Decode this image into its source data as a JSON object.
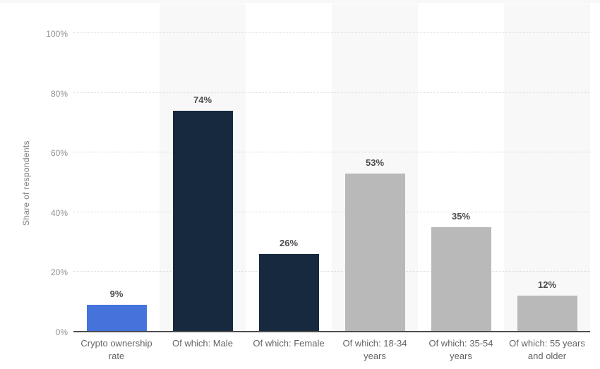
{
  "page": {
    "background_color": "#ffffff",
    "top_strip_color": "#f7f8f9"
  },
  "chart_data": {
    "type": "bar",
    "title": "",
    "xlabel": "",
    "ylabel": "Share of respondents",
    "categories": [
      "Crypto ownership rate",
      "Of which: Male",
      "Of which: Female",
      "Of which: 18-34 years",
      "Of which: 35-54 years",
      "Of which: 55 years and older"
    ],
    "values": [
      9,
      74,
      26,
      53,
      35,
      12
    ],
    "value_labels": [
      "9%",
      "74%",
      "26%",
      "53%",
      "35%",
      "12%"
    ],
    "bar_colors": [
      "#4373db",
      "#17293e",
      "#17293e",
      "#b9b9b9",
      "#b9b9b9",
      "#b9b9b9"
    ],
    "ylim": [
      0,
      100
    ],
    "yticks": [
      0,
      20,
      40,
      60,
      80,
      100
    ],
    "ytick_labels": [
      "0%",
      "20%",
      "40%",
      "60%",
      "80%",
      "100%"
    ],
    "grid": "horizontal dotted gridlines at 20% steps",
    "legend": "none",
    "plot_band_color": "#f8f8f8",
    "plot_bands": "alternating vertical background bands behind categories 2, 4 and 6",
    "colors": {
      "axis_line": "#4d4d4d",
      "gridline": "#d7d7d7",
      "ytick_text": "#8f8f8f",
      "xtick_text": "#646464",
      "value_text": "#4c4c4c",
      "ylabel_text": "#7f7f7f"
    }
  }
}
